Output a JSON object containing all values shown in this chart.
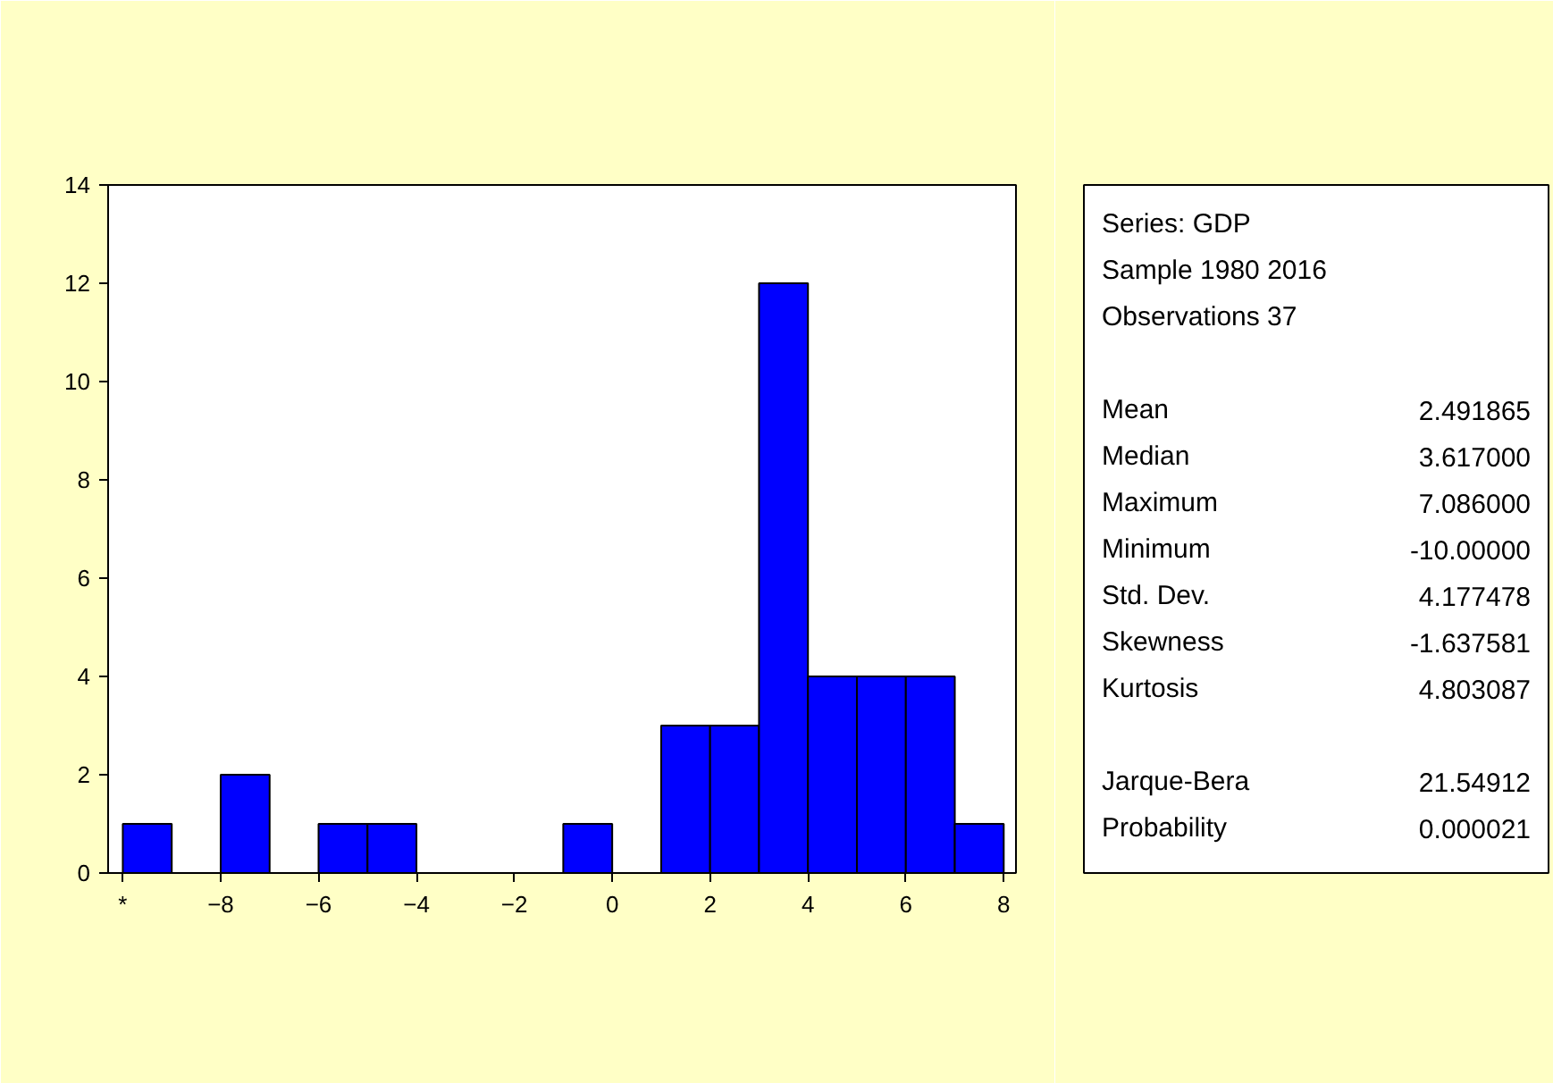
{
  "chart_data": {
    "type": "histogram",
    "color": "#0000ff",
    "bins": [
      -10,
      -9,
      -8,
      -7,
      -6,
      -5,
      -4,
      -3,
      -2,
      -1,
      0,
      1,
      2,
      3,
      4,
      5,
      6,
      7,
      8
    ],
    "values": [
      1,
      0,
      2,
      0,
      1,
      1,
      0,
      0,
      0,
      1,
      0,
      3,
      3,
      12,
      4,
      4,
      4,
      1
    ],
    "xlim": [
      -10.3,
      8.25
    ],
    "ylim": [
      0,
      14
    ],
    "xticks": [
      {
        "value": -10,
        "label": "*"
      },
      -8,
      -6,
      -4,
      -2,
      0,
      2,
      4,
      6,
      8
    ],
    "yticks": [
      0,
      2,
      4,
      6,
      8,
      10,
      12,
      14
    ],
    "grid": false,
    "annotations": [
      "Series: GDP",
      "Sample 1980 2016",
      "Observations 37",
      "Mean\t2.491865",
      "Median\t3.617000",
      "Maximum\t7.086000",
      "Minimum\t-10.00000",
      "Std. Dev.\t4.177478",
      "Skewness\t-1.637581",
      "Kurtosis\t4.803087",
      "Jarque-Bera\t21.54912",
      "Probability\t0.000021"
    ]
  }
}
